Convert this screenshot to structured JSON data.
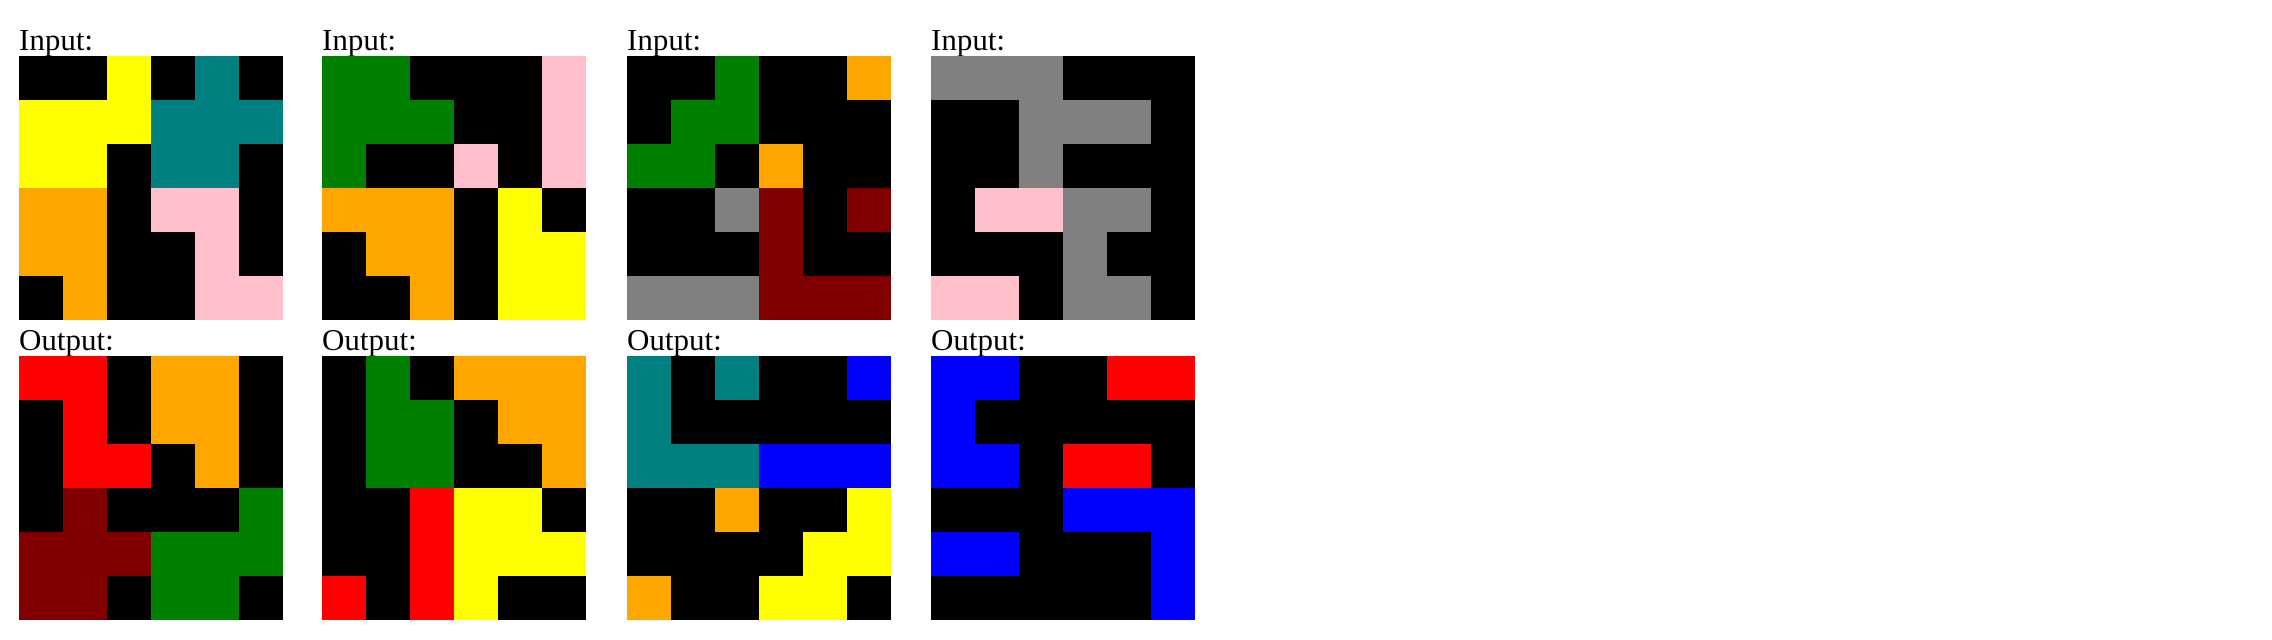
{
  "labels": {
    "input": "Input:",
    "output": "Output:"
  },
  "palette": {
    "0": "#000000",
    "1": "#0000ff",
    "2": "#ff0000",
    "3": "#008000",
    "4": "#ffff00",
    "5": "#808080",
    "6": "#ffc0cb",
    "7": "#ffa500",
    "8": "#008080",
    "9": "#800000"
  },
  "pairs": [
    {
      "input": [
        [
          0,
          0,
          4,
          0,
          8,
          0
        ],
        [
          4,
          4,
          4,
          8,
          8,
          8
        ],
        [
          4,
          4,
          0,
          8,
          8,
          0
        ],
        [
          7,
          7,
          0,
          6,
          6,
          0
        ],
        [
          7,
          7,
          0,
          0,
          6,
          0
        ],
        [
          0,
          7,
          0,
          0,
          6,
          6
        ]
      ],
      "output": [
        [
          2,
          2,
          0,
          7,
          7,
          0
        ],
        [
          0,
          2,
          0,
          7,
          7,
          0
        ],
        [
          0,
          2,
          2,
          0,
          7,
          0
        ],
        [
          0,
          9,
          0,
          0,
          0,
          3
        ],
        [
          9,
          9,
          9,
          3,
          3,
          3
        ],
        [
          9,
          9,
          0,
          3,
          3,
          0
        ]
      ]
    },
    {
      "input": [
        [
          3,
          3,
          0,
          0,
          0,
          6
        ],
        [
          3,
          3,
          3,
          0,
          0,
          6
        ],
        [
          3,
          0,
          0,
          6,
          0,
          6
        ],
        [
          7,
          7,
          7,
          0,
          4,
          0
        ],
        [
          0,
          7,
          7,
          0,
          4,
          4
        ],
        [
          0,
          0,
          7,
          0,
          4,
          4
        ]
      ],
      "output": [
        [
          0,
          3,
          0,
          7,
          7,
          7
        ],
        [
          0,
          3,
          3,
          0,
          7,
          7
        ],
        [
          0,
          3,
          3,
          0,
          0,
          7
        ],
        [
          0,
          0,
          2,
          4,
          4,
          0
        ],
        [
          0,
          0,
          2,
          4,
          4,
          4
        ],
        [
          2,
          0,
          2,
          4,
          0,
          0
        ]
      ]
    },
    {
      "input": [
        [
          0,
          0,
          3,
          0,
          0,
          7
        ],
        [
          0,
          3,
          3,
          0,
          0,
          0
        ],
        [
          3,
          3,
          0,
          7,
          0,
          0
        ],
        [
          0,
          0,
          5,
          9,
          0,
          9
        ],
        [
          0,
          0,
          0,
          9,
          0,
          0
        ],
        [
          5,
          5,
          5,
          9,
          9,
          9
        ]
      ],
      "output": [
        [
          8,
          0,
          8,
          0,
          0,
          1
        ],
        [
          8,
          0,
          0,
          0,
          0,
          0
        ],
        [
          8,
          8,
          8,
          1,
          1,
          1
        ],
        [
          0,
          0,
          7,
          0,
          0,
          4
        ],
        [
          0,
          0,
          0,
          0,
          4,
          4
        ],
        [
          7,
          0,
          0,
          4,
          4,
          0
        ]
      ]
    },
    {
      "input": [
        [
          5,
          5,
          5,
          0,
          0,
          0
        ],
        [
          0,
          0,
          5,
          5,
          5,
          0
        ],
        [
          0,
          0,
          5,
          0,
          0,
          0
        ],
        [
          0,
          6,
          6,
          5,
          5,
          0
        ],
        [
          0,
          0,
          0,
          5,
          0,
          0
        ],
        [
          6,
          6,
          0,
          5,
          5,
          0
        ]
      ],
      "output": [
        [
          1,
          1,
          0,
          0,
          2,
          2
        ],
        [
          1,
          0,
          0,
          0,
          0,
          0
        ],
        [
          1,
          1,
          0,
          2,
          2,
          0
        ],
        [
          0,
          0,
          0,
          1,
          1,
          1
        ],
        [
          1,
          1,
          0,
          0,
          0,
          1
        ],
        [
          0,
          0,
          0,
          0,
          0,
          1
        ]
      ]
    }
  ]
}
